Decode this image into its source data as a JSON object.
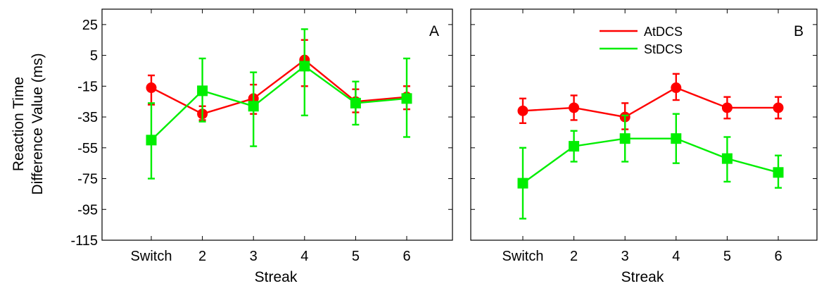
{
  "y_axis_title_lines": [
    "Reaction Time",
    "Difference Value (ms)"
  ],
  "chart_data": [
    {
      "type": "line",
      "panel_label": "A",
      "xlabel": "Streak",
      "categories": [
        "Switch",
        "2",
        "3",
        "4",
        "5",
        "6"
      ],
      "ylim": [
        -115,
        35
      ],
      "yticks": [
        25,
        5,
        -15,
        -35,
        -55,
        -75,
        -95,
        -115
      ],
      "error_bars": true,
      "series": [
        {
          "name": "AtDCS",
          "color": "#ff0000",
          "marker": "circle",
          "values": [
            -16,
            -33,
            -23,
            2,
            -25,
            -22
          ],
          "err_low": [
            -27,
            -37,
            -33,
            -15,
            -32,
            -30
          ],
          "err_high": [
            -8,
            -28,
            -14,
            15,
            -17,
            -15
          ]
        },
        {
          "name": "StDCS",
          "color": "#00ee00",
          "marker": "square",
          "values": [
            -50,
            -18,
            -28,
            -2,
            -26,
            -23
          ],
          "err_low": [
            -75,
            -38,
            -54,
            -34,
            -40,
            -48
          ],
          "err_high": [
            -26,
            3,
            -6,
            22,
            -12,
            3
          ]
        }
      ]
    },
    {
      "type": "line",
      "panel_label": "B",
      "xlabel": "Streak",
      "categories": [
        "Switch",
        "2",
        "3",
        "4",
        "5",
        "6"
      ],
      "ylim": [
        -115,
        35
      ],
      "error_bars": true,
      "legend_position": "top-center",
      "series": [
        {
          "name": "AtDCS",
          "color": "#ff0000",
          "marker": "circle",
          "values": [
            -31,
            -29,
            -35,
            -16,
            -29,
            -29
          ],
          "err_low": [
            -39,
            -37,
            -43,
            -24,
            -36,
            -36
          ],
          "err_high": [
            -23,
            -21,
            -26,
            -7,
            -22,
            -22
          ]
        },
        {
          "name": "StDCS",
          "color": "#00ee00",
          "marker": "square",
          "values": [
            -78,
            -54,
            -49,
            -49,
            -62,
            -71
          ],
          "err_low": [
            -101,
            -64,
            -64,
            -65,
            -77,
            -81
          ],
          "err_high": [
            -55,
            -44,
            -34,
            -33,
            -48,
            -60
          ]
        }
      ]
    }
  ]
}
